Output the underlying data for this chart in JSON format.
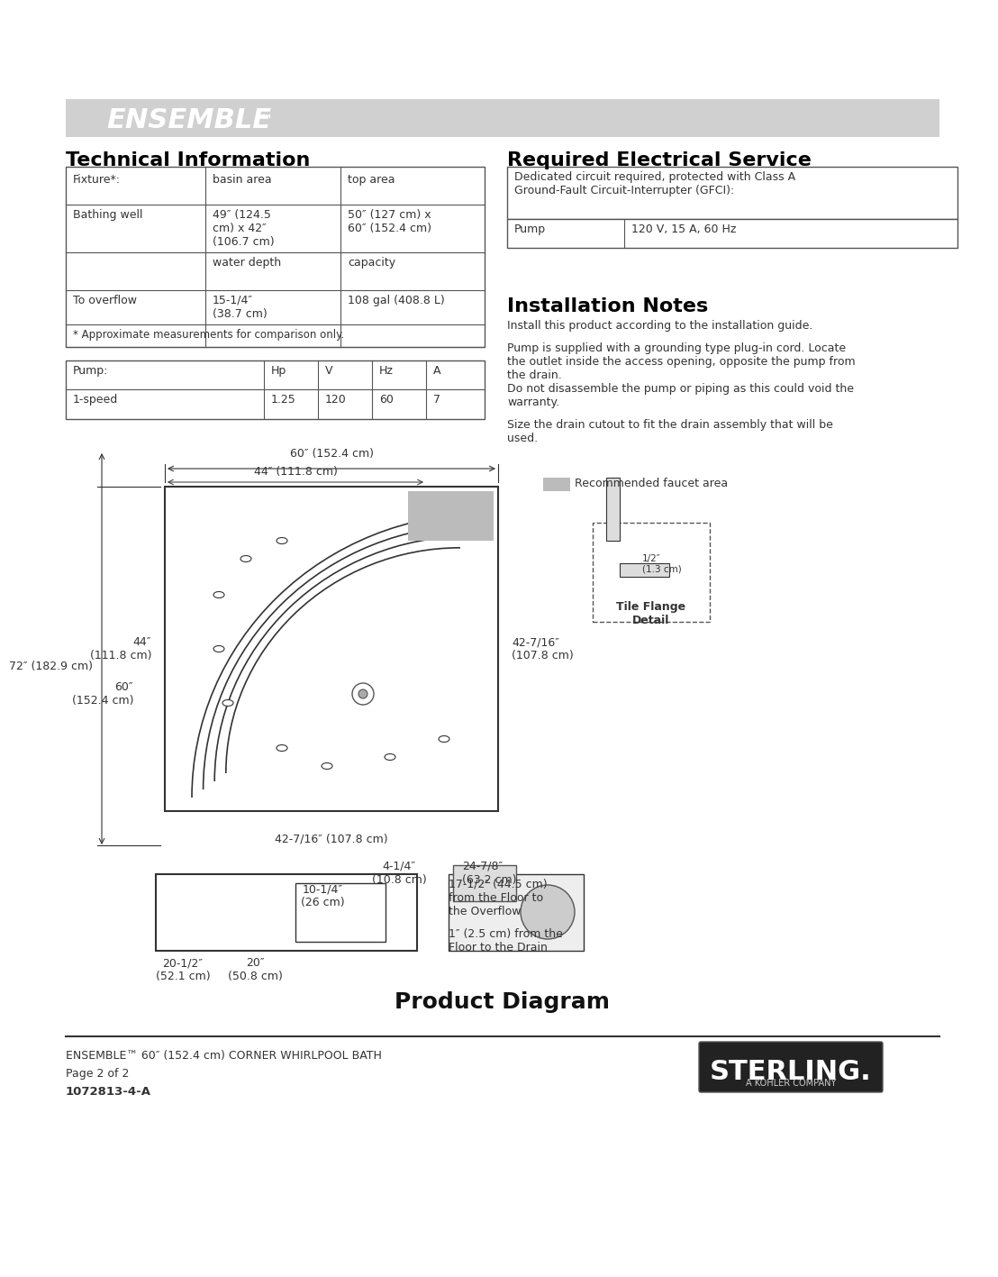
{
  "bg_color": "#ffffff",
  "header_bg": "#d0d0d0",
  "header_text": "ENSEMBLE™",
  "header_text_color": "#ffffff",
  "section1_title": "Technical Information",
  "section2_title": "Required Electrical Service",
  "section3_title": "Installation Notes",
  "tech_table1": {
    "headers": [
      "Fixture*:",
      "basin area",
      "top area"
    ],
    "rows": [
      [
        "Bathing well",
        "49″ (124.5\ncm) x 42″\n(106.7 cm)",
        "50″ (127 cm) x\n60″ (152.4 cm)"
      ],
      [
        "",
        "water depth",
        "capacity"
      ],
      [
        "To overflow",
        "15-1/4″\n(38.7 cm)",
        "108 gal (408.8 L)"
      ],
      [
        "* Approximate measurements for comparison only.",
        "",
        ""
      ]
    ]
  },
  "tech_table2": {
    "headers": [
      "Pump:",
      "Hp",
      "V",
      "Hz",
      "A"
    ],
    "rows": [
      [
        "1-speed",
        "1.25",
        "120",
        "60",
        "7"
      ]
    ]
  },
  "electrical_table": {
    "note": "Dedicated circuit required, protected with Class A\nGround-Fault Circuit-Interrupter (GFCI):",
    "headers": [
      "Pump",
      "120 V, 15 A, 60 Hz"
    ]
  },
  "install_notes": [
    "Install this product according to the installation guide.",
    "Pump is supplied with a grounding type plug-in cord. Locate\nthe outlet inside the access opening, opposite the pump from\nthe drain.",
    "Do not disassemble the pump or piping as this could void the\nwarranty.",
    "Size the drain cutout to fit the drain assembly that will be\nused."
  ],
  "diagram_labels": {
    "dim_60_top": "60″ (152.4 cm)",
    "dim_44_top": "44″ (111.8 cm)",
    "dim_72_left": "72″ (182.9 cm)",
    "dim_44_left": "44″\n(111.8 cm)",
    "dim_60_left": "60″\n(152.4 cm)",
    "dim_42716_right": "42-7/16″\n(107.8 cm)",
    "dim_4_14": "4-1/4″\n(10.8 cm)",
    "dim_10_14": "10-1/4″\n(26 cm)",
    "dim_24_78": "24-7/8″\n(63.2 cm)",
    "dim_42716_bottom": "42-7/16″ (107.8 cm)",
    "faucet_legend": "Recommended faucet area",
    "tile_flange": "Tile Flange\nDetail",
    "tile_dim_half": "1/2″\n(1.3 cm)",
    "dim_42716_right2": "42-7/16″\n(107.8 cm)"
  },
  "bottom_labels": {
    "left1": "20-1/2″",
    "left2": "(52.1 cm)",
    "left3": "20″",
    "left4": "(50.8 cm)",
    "right1": "17-1/2″ (44.5 cm)",
    "right2": "from the Floor to",
    "right3": "the Overflow",
    "right4": "1″ (2.5 cm) from the",
    "right5": "Floor to the Drain"
  },
  "product_diagram_title": "Product Diagram",
  "footer_line1": "ENSEMBLE™ 60″ (152.4 cm) CORNER WHIRLPOOL BATH",
  "footer_line2": "Page 2 of 2",
  "footer_line3": "1072813-4-A",
  "sterling_logo_text": "STERLING.",
  "kohler_text": "A KOHLER COMPANY"
}
